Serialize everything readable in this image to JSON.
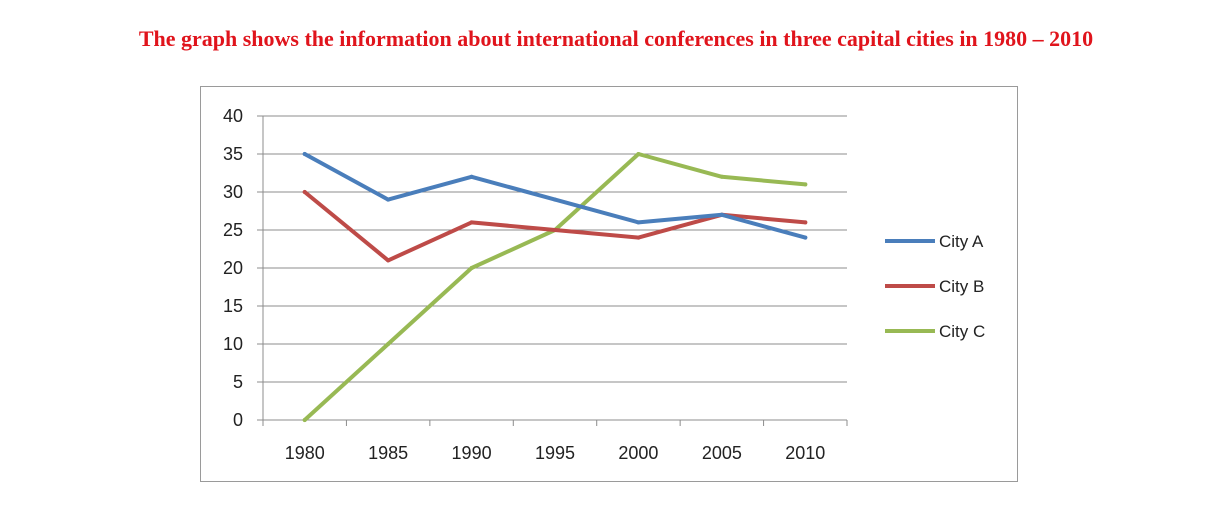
{
  "title": "The graph shows the information about international conferences in three capital cities in 1980 – 2010",
  "chart_data": {
    "type": "line",
    "title": "",
    "xlabel": "",
    "ylabel": "",
    "categories": [
      "1980",
      "1985",
      "1990",
      "1995",
      "2000",
      "2005",
      "2010"
    ],
    "ylim": [
      0,
      40
    ],
    "yticks": [
      0,
      5,
      10,
      15,
      20,
      25,
      30,
      35,
      40
    ],
    "grid": true,
    "legend_position": "right",
    "series": [
      {
        "name": "City A",
        "color": "#4a7ebb",
        "values": [
          35,
          29,
          32,
          29,
          26,
          27,
          24
        ]
      },
      {
        "name": "City B",
        "color": "#be4b48",
        "values": [
          30,
          21,
          26,
          25,
          24,
          27,
          26
        ]
      },
      {
        "name": "City C",
        "color": "#98b954",
        "values": [
          0,
          10,
          20,
          25,
          35,
          32,
          31
        ]
      }
    ]
  }
}
